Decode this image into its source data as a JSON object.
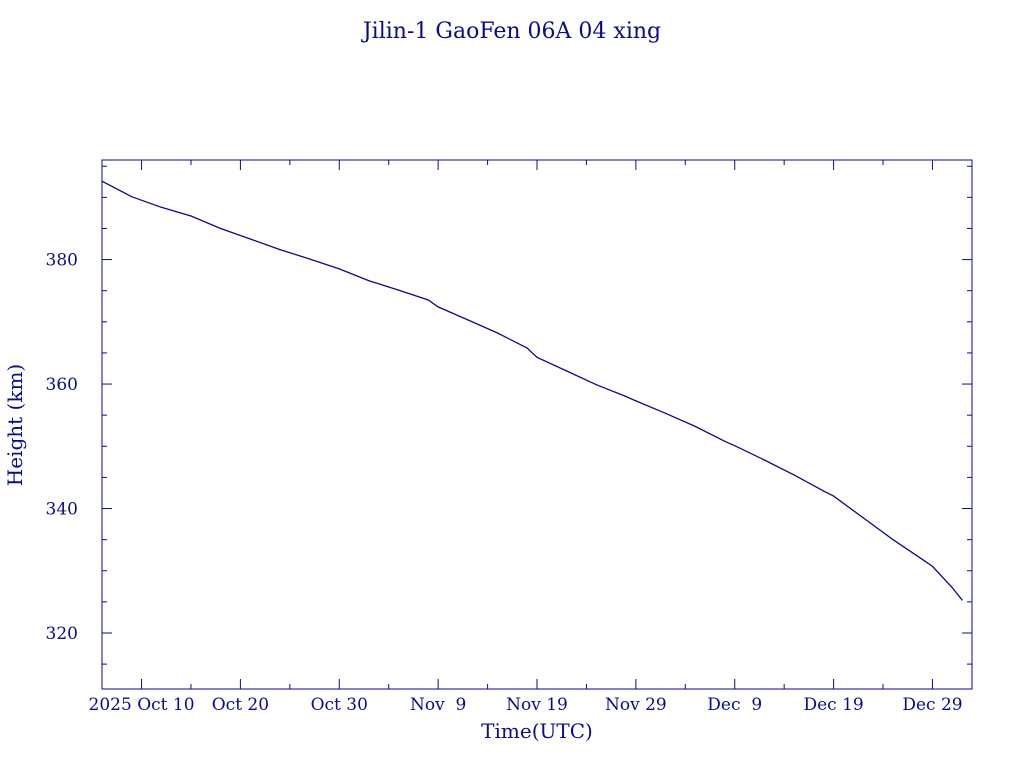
{
  "chart_data": {
    "type": "line",
    "title": "Jilin-1 GaoFen 06A 04 xing",
    "xlabel": "Time(UTC)",
    "ylabel": "Height (km)",
    "x_type": "date",
    "xlim": [
      "2025-10-06",
      "2026-01-02"
    ],
    "ylim": [
      311,
      396
    ],
    "grid": false,
    "x_ticks": [
      {
        "date": "2025-10-10",
        "label": "2025 Oct 10"
      },
      {
        "date": "2025-10-20",
        "label": "Oct 20"
      },
      {
        "date": "2025-10-30",
        "label": "Oct 30"
      },
      {
        "date": "2025-11-09",
        "label": "Nov  9"
      },
      {
        "date": "2025-11-19",
        "label": "Nov 19"
      },
      {
        "date": "2025-11-29",
        "label": "Nov 29"
      },
      {
        "date": "2025-12-09",
        "label": "Dec  9"
      },
      {
        "date": "2025-12-19",
        "label": "Dec 19"
      },
      {
        "date": "2025-12-29",
        "label": "Dec 29"
      }
    ],
    "y_ticks": [
      320,
      340,
      360,
      380
    ],
    "series": [
      {
        "color": "#0b0b8c",
        "points": [
          [
            "2025-10-06",
            392.6
          ],
          [
            "2025-10-09",
            390.1
          ],
          [
            "2025-10-12",
            388.4
          ],
          [
            "2025-10-15",
            387.0
          ],
          [
            "2025-10-18",
            385.0
          ],
          [
            "2025-10-21",
            383.3
          ],
          [
            "2025-10-24",
            381.6
          ],
          [
            "2025-10-27",
            380.1
          ],
          [
            "2025-10-30",
            378.5
          ],
          [
            "2025-11-02",
            376.6
          ],
          [
            "2025-11-05",
            375.1
          ],
          [
            "2025-11-08",
            373.5
          ],
          [
            "2025-11-09",
            372.4
          ],
          [
            "2025-11-12",
            370.3
          ],
          [
            "2025-11-15",
            368.2
          ],
          [
            "2025-11-18",
            365.8
          ],
          [
            "2025-11-19",
            364.3
          ],
          [
            "2025-11-22",
            362.1
          ],
          [
            "2025-11-25",
            359.9
          ],
          [
            "2025-11-28",
            358.0
          ],
          [
            "2025-11-29",
            357.3
          ],
          [
            "2025-12-02",
            355.3
          ],
          [
            "2025-12-05",
            353.2
          ],
          [
            "2025-12-08",
            350.8
          ],
          [
            "2025-12-09",
            350.1
          ],
          [
            "2025-12-12",
            347.8
          ],
          [
            "2025-12-15",
            345.4
          ],
          [
            "2025-12-18",
            342.8
          ],
          [
            "2025-12-19",
            342.0
          ],
          [
            "2025-12-22",
            338.5
          ],
          [
            "2025-12-25",
            335.0
          ],
          [
            "2025-12-28",
            331.8
          ],
          [
            "2025-12-29",
            330.7
          ],
          [
            "2025-12-31",
            327.3
          ],
          [
            "2026-01-01",
            325.3
          ]
        ]
      }
    ]
  }
}
